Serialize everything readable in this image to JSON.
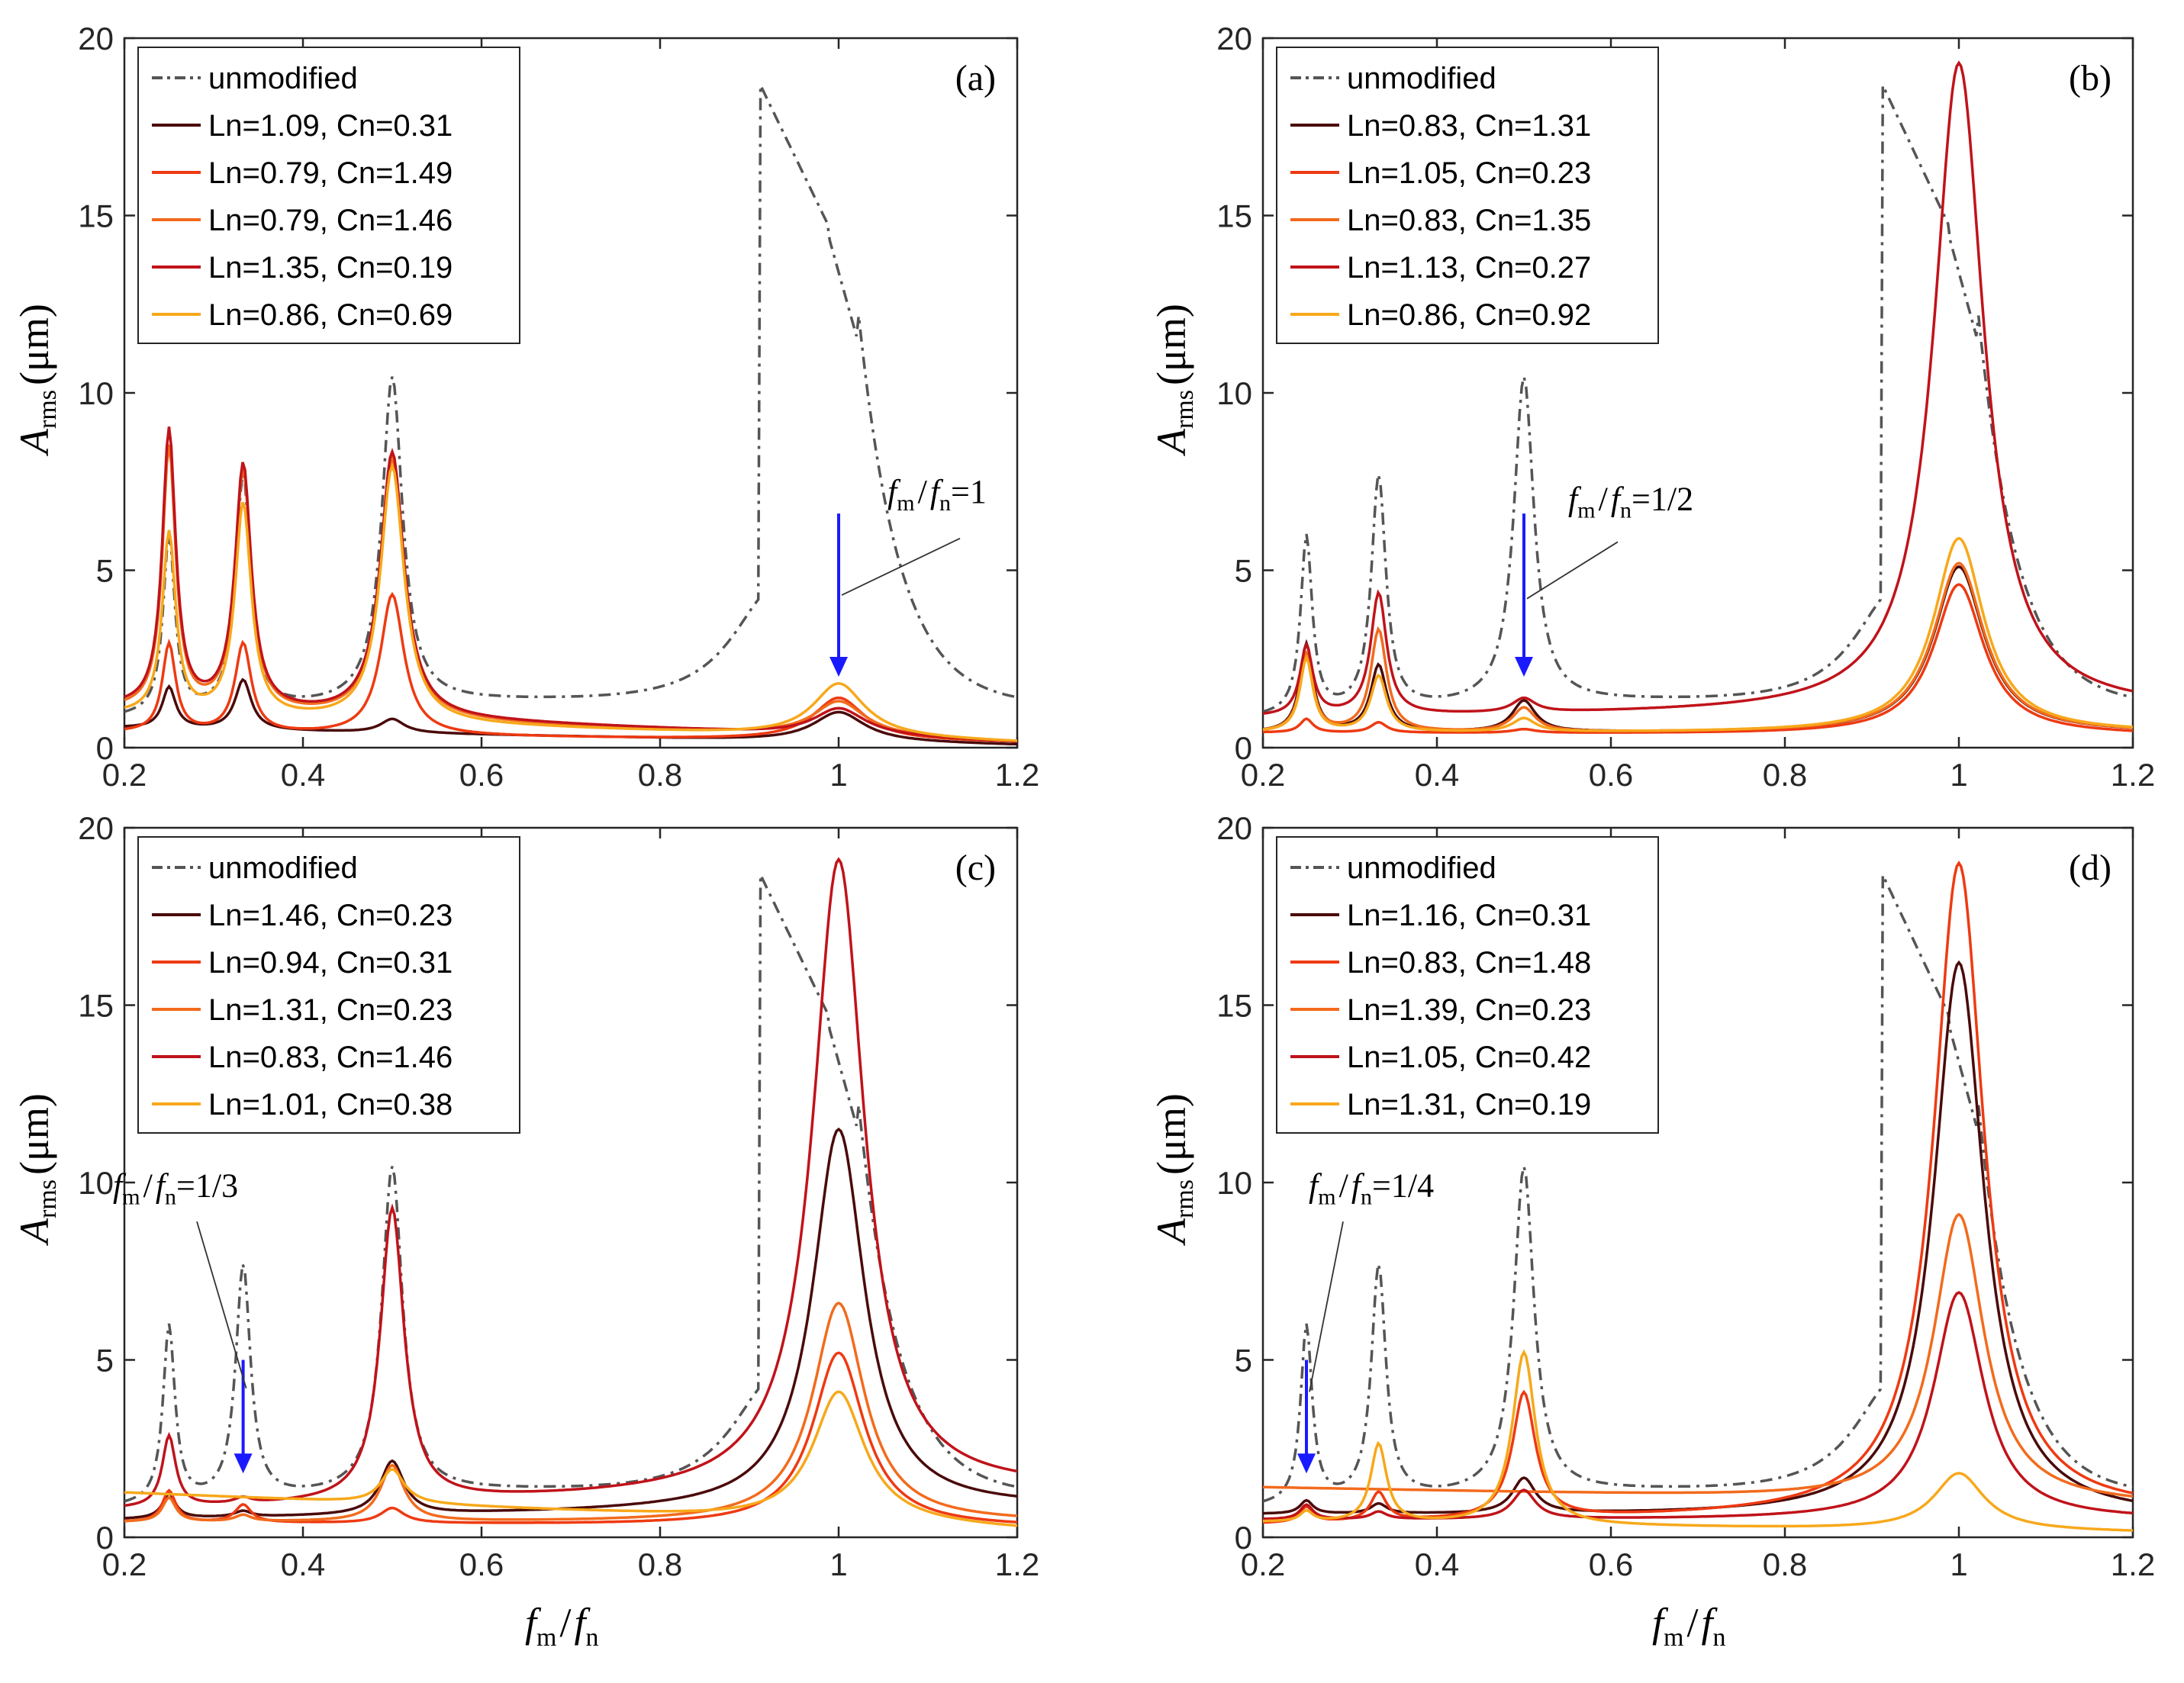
{
  "figure": {
    "x_axis": {
      "label_main": "f",
      "label_sub_m": "m",
      "label_slash": "/",
      "label_sub_n": "n",
      "ticks": [
        "0.2",
        "0.4",
        "0.6",
        "0.8",
        "1",
        "1.2"
      ],
      "range": [
        0.2,
        1.2
      ]
    },
    "y_axis": {
      "label_main": "A",
      "label_sub": "rms",
      "label_unit": "(μm)",
      "ticks": [
        "0",
        "5",
        "10",
        "15",
        "20"
      ],
      "range": [
        0,
        20
      ]
    },
    "colors": {
      "unmodified": "#555555",
      "dark": "#4a0a0a",
      "red": "#c0131a",
      "orange_red": "#ee3a12",
      "orange": "#f26b1d",
      "yellow": "#f7a81b",
      "arrow": "#1a1aff"
    }
  },
  "chart_data": [
    {
      "type": "line",
      "panel": "(a)",
      "annotation": {
        "text_f1": "f",
        "sub_m": "m",
        "slash": "/",
        "text_f2": "f",
        "sub_n": "n",
        "rest": "=1",
        "x": 1.0
      },
      "series": [
        {
          "name": "unmodified",
          "style": "unmodified"
        },
        {
          "name": "Ln=1.09, Cn=0.31",
          "style": "dark"
        },
        {
          "name": "Ln=0.79, Cn=1.49",
          "style": "orange_red"
        },
        {
          "name": "Ln=0.79, Cn=1.46",
          "style": "orange"
        },
        {
          "name": "Ln=1.35, Cn=0.19",
          "style": "red"
        },
        {
          "name": "Ln=0.86, Cn=0.69",
          "style": "yellow"
        }
      ],
      "peaks": {
        "dark": [
          0.8,
          1.7,
          1.9,
          0.8,
          1.0,
          0.1
        ],
        "orange_red": [
          0.6,
          2.9,
          2.9,
          4.3,
          1.4,
          0.2
        ],
        "orange": [
          1.5,
          8.4,
          7.7,
          8.1,
          1.3,
          0.2
        ],
        "red": [
          1.6,
          8.9,
          7.9,
          8.3,
          1.1,
          0.2
        ],
        "yellow": [
          1.3,
          6.0,
          6.8,
          7.9,
          1.8,
          0.2
        ]
      }
    },
    {
      "type": "line",
      "panel": "(b)",
      "annotation": {
        "text_f1": "f",
        "sub_m": "m",
        "slash": "/",
        "text_f2": "f",
        "sub_n": "n",
        "rest": "=1/2",
        "x": 0.5
      },
      "series": [
        {
          "name": "unmodified",
          "style": "unmodified"
        },
        {
          "name": "Ln=0.83, Cn=1.31",
          "style": "dark"
        },
        {
          "name": "Ln=1.05, Cn=0.23",
          "style": "orange_red"
        },
        {
          "name": "Ln=0.83, Cn=1.35",
          "style": "orange"
        },
        {
          "name": "Ln=1.13, Cn=0.27",
          "style": "red"
        },
        {
          "name": "Ln=0.86, Cn=0.92",
          "style": "yellow"
        }
      ],
      "peaks": {
        "dark": [
          0.6,
          2.9,
          2.3,
          1.3,
          5.1,
          0.6
        ],
        "orange_red": [
          0.6,
          0.8,
          0.7,
          0.5,
          4.6,
          0.5
        ],
        "orange": [
          0.6,
          2.6,
          3.3,
          1.1,
          5.2,
          0.6
        ],
        "red": [
          1.2,
          2.8,
          4.3,
          1.3,
          19.3,
          1.5
        ],
        "yellow": [
          0.6,
          2.5,
          2.0,
          0.8,
          5.9,
          0.6
        ]
      }
    },
    {
      "type": "line",
      "panel": "(c)",
      "annotation": {
        "text_f1": "f",
        "sub_m": "m",
        "slash": "/",
        "text_f2": "f",
        "sub_n": "n",
        "rest": "=1/3",
        "x": 0.333
      },
      "series": [
        {
          "name": "unmodified",
          "style": "unmodified"
        },
        {
          "name": "Ln=1.46, Cn=0.23",
          "style": "dark"
        },
        {
          "name": "Ln=0.94, Cn=0.31",
          "style": "orange_red"
        },
        {
          "name": "Ln=1.31, Cn=0.23",
          "style": "orange"
        },
        {
          "name": "Ln=0.83, Cn=1.46",
          "style": "red"
        },
        {
          "name": "Ln=1.01, Cn=0.38",
          "style": "yellow"
        }
      ],
      "peaks": {
        "dark": [
          0.7,
          1.2,
          0.7,
          2.1,
          11.5,
          1.2
        ],
        "orange_red": [
          0.6,
          1.3,
          0.9,
          0.8,
          5.2,
          0.4
        ],
        "orange": [
          0.6,
          1.1,
          0.6,
          2.0,
          6.6,
          0.6
        ],
        "red": [
          1.1,
          2.8,
          1.0,
          9.2,
          19.1,
          1.9
        ],
        "yellow": [
          1.8,
          1.0,
          0.5,
          1.9,
          4.1,
          0.3
        ]
      }
    },
    {
      "type": "line",
      "panel": "(d)",
      "annotation": {
        "text_f1": "f",
        "sub_m": "m",
        "slash": "/",
        "text_f2": "f",
        "sub_n": "n",
        "rest": "=1/4",
        "x": 0.25
      },
      "series": [
        {
          "name": "unmodified",
          "style": "unmodified"
        },
        {
          "name": "Ln=1.16, Cn=0.31",
          "style": "dark"
        },
        {
          "name": "Ln=0.83, Cn=1.48",
          "style": "orange_red"
        },
        {
          "name": "Ln=1.39, Cn=0.23",
          "style": "orange"
        },
        {
          "name": "Ln=1.05, Cn=0.42",
          "style": "red"
        },
        {
          "name": "Ln=1.31, Cn=0.19",
          "style": "yellow"
        }
      ],
      "peaks": {
        "dark": [
          0.9,
          1.0,
          0.9,
          1.6,
          16.2,
          0.8
        ],
        "orange_red": [
          0.5,
          0.8,
          1.2,
          4.0,
          19.0,
          1.0
        ],
        "orange": [
          2.0,
          1.1,
          1.2,
          0.8,
          9.1,
          1.3
        ],
        "red": [
          0.7,
          0.9,
          0.7,
          1.3,
          6.9,
          0.7
        ],
        "yellow": [
          0.6,
          0.7,
          2.6,
          5.2,
          1.8,
          0.2
        ]
      }
    }
  ]
}
